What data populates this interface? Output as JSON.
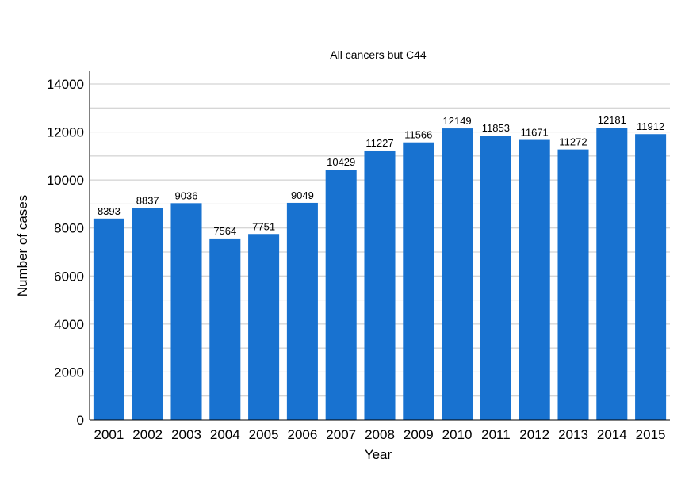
{
  "chart_data": {
    "type": "bar",
    "title": "All cancers but C44",
    "xlabel": "Year",
    "ylabel": "Number of cases",
    "categories": [
      "2001",
      "2002",
      "2003",
      "2004",
      "2005",
      "2006",
      "2007",
      "2008",
      "2009",
      "2010",
      "2011",
      "2012",
      "2013",
      "2014",
      "2015"
    ],
    "values": [
      8393,
      8837,
      9036,
      7564,
      7751,
      9049,
      10429,
      11227,
      11566,
      12149,
      11853,
      11671,
      11272,
      12181,
      11912
    ],
    "data_labels": [
      "8393",
      "8837",
      "9036",
      "7564",
      "7751",
      "9049",
      "10429",
      "11227",
      "11566",
      "12149",
      "11853",
      "11671",
      "11272",
      "12181",
      "11912"
    ],
    "ylim": [
      0,
      14000
    ],
    "yticks": [
      0,
      2000,
      4000,
      6000,
      8000,
      10000,
      12000,
      14000
    ],
    "ytick_labels": [
      "0",
      "2000",
      "4000",
      "6000",
      "8000",
      "10000",
      "12000",
      "14000"
    ],
    "grid": true,
    "bar_color": "#1872d0"
  }
}
